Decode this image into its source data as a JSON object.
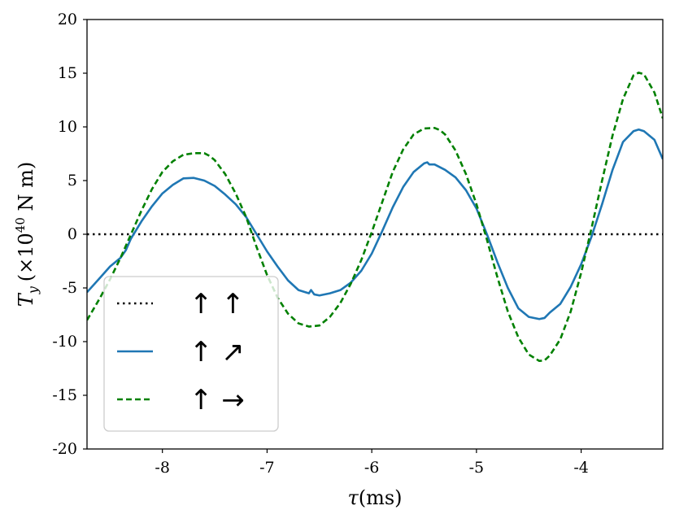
{
  "chart_data": {
    "type": "line",
    "xlabel": "τ(ms)",
    "ylabel": "T_y (×10^40 N m)",
    "ylabel_parts": {
      "main": "T",
      "sub": "y",
      "pre": "(×10",
      "exp": "40",
      "post": " N m)"
    },
    "xlabel_parts": {
      "main": "τ",
      "post": "(ms)"
    },
    "xlim": [
      -8.72,
      -3.22
    ],
    "ylim": [
      -20,
      20
    ],
    "xticks": [
      -8,
      -7,
      -6,
      -5,
      -4
    ],
    "xtick_labels": [
      "-8",
      "-7",
      "-6",
      "-5",
      "-4"
    ],
    "yticks": [
      -20,
      -15,
      -10,
      -5,
      0,
      5,
      10,
      15,
      20
    ],
    "ytick_labels": [
      "-20",
      "-15",
      "-10",
      "-5",
      "0",
      "5",
      "10",
      "15",
      "20"
    ],
    "grid": false,
    "legend_placement": "lower-left",
    "series": [
      {
        "name": "↑ ↑",
        "color": "#000000",
        "style": "dotted",
        "x": [
          -8.72,
          -3.22
        ],
        "y": [
          0,
          0
        ]
      },
      {
        "name": "↑ ↗",
        "color": "#1f77b4",
        "style": "solid",
        "x": [
          -8.72,
          -8.6,
          -8.5,
          -8.4,
          -8.35,
          -8.3,
          -8.2,
          -8.1,
          -8.0,
          -7.9,
          -7.8,
          -7.7,
          -7.6,
          -7.5,
          -7.4,
          -7.3,
          -7.2,
          -7.1,
          -7.0,
          -6.9,
          -6.8,
          -6.7,
          -6.6,
          -6.58,
          -6.55,
          -6.5,
          -6.4,
          -6.3,
          -6.2,
          -6.1,
          -6.0,
          -5.9,
          -5.8,
          -5.7,
          -5.6,
          -5.5,
          -5.47,
          -5.45,
          -5.4,
          -5.3,
          -5.2,
          -5.1,
          -5.0,
          -4.9,
          -4.8,
          -4.7,
          -4.6,
          -4.5,
          -4.4,
          -4.35,
          -4.3,
          -4.2,
          -4.1,
          -4.0,
          -3.9,
          -3.8,
          -3.7,
          -3.6,
          -3.5,
          -3.45,
          -3.4,
          -3.3,
          -3.22
        ],
        "y": [
          -5.4,
          -4.1,
          -3.0,
          -2.2,
          -1.5,
          -0.4,
          1.2,
          2.6,
          3.8,
          4.6,
          5.2,
          5.25,
          5.0,
          4.5,
          3.7,
          2.8,
          1.6,
          0.0,
          -1.6,
          -3.0,
          -4.3,
          -5.2,
          -5.5,
          -5.2,
          -5.6,
          -5.7,
          -5.5,
          -5.2,
          -4.5,
          -3.4,
          -1.8,
          0.3,
          2.5,
          4.4,
          5.8,
          6.6,
          6.7,
          6.5,
          6.5,
          6.0,
          5.3,
          4.1,
          2.4,
          0.0,
          -2.6,
          -5.0,
          -6.9,
          -7.7,
          -7.9,
          -7.8,
          -7.3,
          -6.5,
          -4.9,
          -2.8,
          -0.2,
          2.8,
          6.0,
          8.6,
          9.6,
          9.75,
          9.6,
          8.8,
          7.0
        ]
      },
      {
        "name": "↑ →",
        "color": "#008000",
        "style": "dashed",
        "x": [
          -8.72,
          -8.6,
          -8.5,
          -8.4,
          -8.3,
          -8.2,
          -8.1,
          -8.0,
          -7.9,
          -7.8,
          -7.7,
          -7.6,
          -7.55,
          -7.5,
          -7.4,
          -7.3,
          -7.2,
          -7.1,
          -7.0,
          -6.9,
          -6.8,
          -6.7,
          -6.6,
          -6.5,
          -6.4,
          -6.3,
          -6.2,
          -6.1,
          -6.0,
          -5.9,
          -5.8,
          -5.7,
          -5.6,
          -5.5,
          -5.4,
          -5.35,
          -5.3,
          -5.2,
          -5.1,
          -5.0,
          -4.9,
          -4.8,
          -4.7,
          -4.6,
          -4.5,
          -4.4,
          -4.35,
          -4.3,
          -4.2,
          -4.1,
          -4.0,
          -3.9,
          -3.8,
          -3.7,
          -3.6,
          -3.5,
          -3.45,
          -3.4,
          -3.3,
          -3.22
        ],
        "y": [
          -8.0,
          -6.0,
          -4.2,
          -2.2,
          0.0,
          2.2,
          4.2,
          5.8,
          6.8,
          7.4,
          7.55,
          7.55,
          7.3,
          6.9,
          5.6,
          3.8,
          1.6,
          -1.2,
          -3.8,
          -5.9,
          -7.4,
          -8.3,
          -8.6,
          -8.5,
          -7.7,
          -6.4,
          -4.6,
          -2.4,
          0.2,
          3.0,
          5.8,
          7.9,
          9.3,
          9.85,
          9.9,
          9.7,
          9.3,
          7.8,
          5.6,
          2.8,
          -0.5,
          -4.0,
          -7.2,
          -9.6,
          -11.2,
          -11.8,
          -11.75,
          -11.3,
          -9.8,
          -7.2,
          -3.6,
          0.6,
          5.0,
          9.2,
          12.6,
          14.8,
          15.05,
          14.9,
          13.2,
          10.8
        ]
      }
    ]
  }
}
